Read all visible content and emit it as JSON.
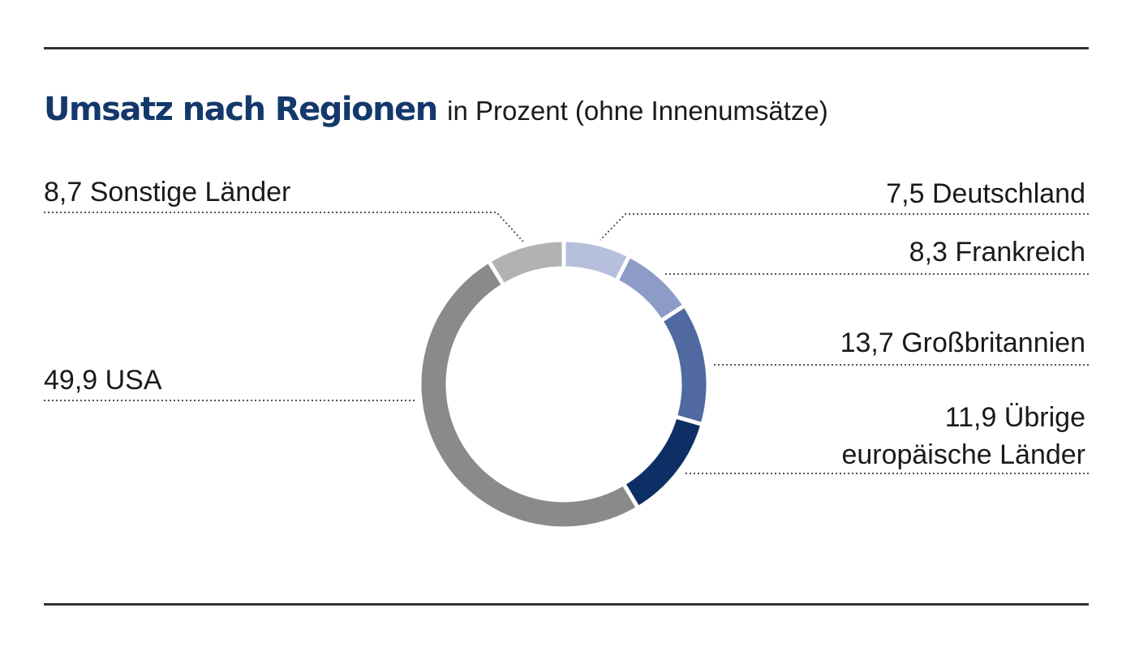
{
  "chart_data": {
    "type": "pie",
    "title": "Umsatz nach Regionen",
    "subtitle": "in Prozent (ohne Innenumsätze)",
    "slices": [
      {
        "name": "Deutschland",
        "value": 7.5,
        "value_label": "7,5",
        "color": "#b6bfdb"
      },
      {
        "name": "Frankreich",
        "value": 8.3,
        "value_label": "8,3",
        "color": "#8d9cc6"
      },
      {
        "name": "Großbritannien",
        "value": 13.7,
        "value_label": "13,7",
        "color": "#5069a0"
      },
      {
        "name": "Übrige europäische Länder",
        "value": 11.9,
        "value_label": "11,9",
        "color": "#0e2f66"
      },
      {
        "name": "USA",
        "value": 49.9,
        "value_label": "49,9",
        "color": "#8a8a8a"
      },
      {
        "name": "Sonstige Länder",
        "value": 8.7,
        "value_label": "8,7",
        "color": "#b2b2b2"
      }
    ],
    "labels": {
      "deutschland": "7,5 Deutschland",
      "frankreich": "8,3 Frankreich",
      "grossbritannien": "13,7 Großbritannien",
      "uebrige_line1": "11,9 Übrige",
      "uebrige_line2": "europäische Länder",
      "usa": "49,9 USA",
      "sonstige": "8,7 Sonstige Länder"
    }
  }
}
